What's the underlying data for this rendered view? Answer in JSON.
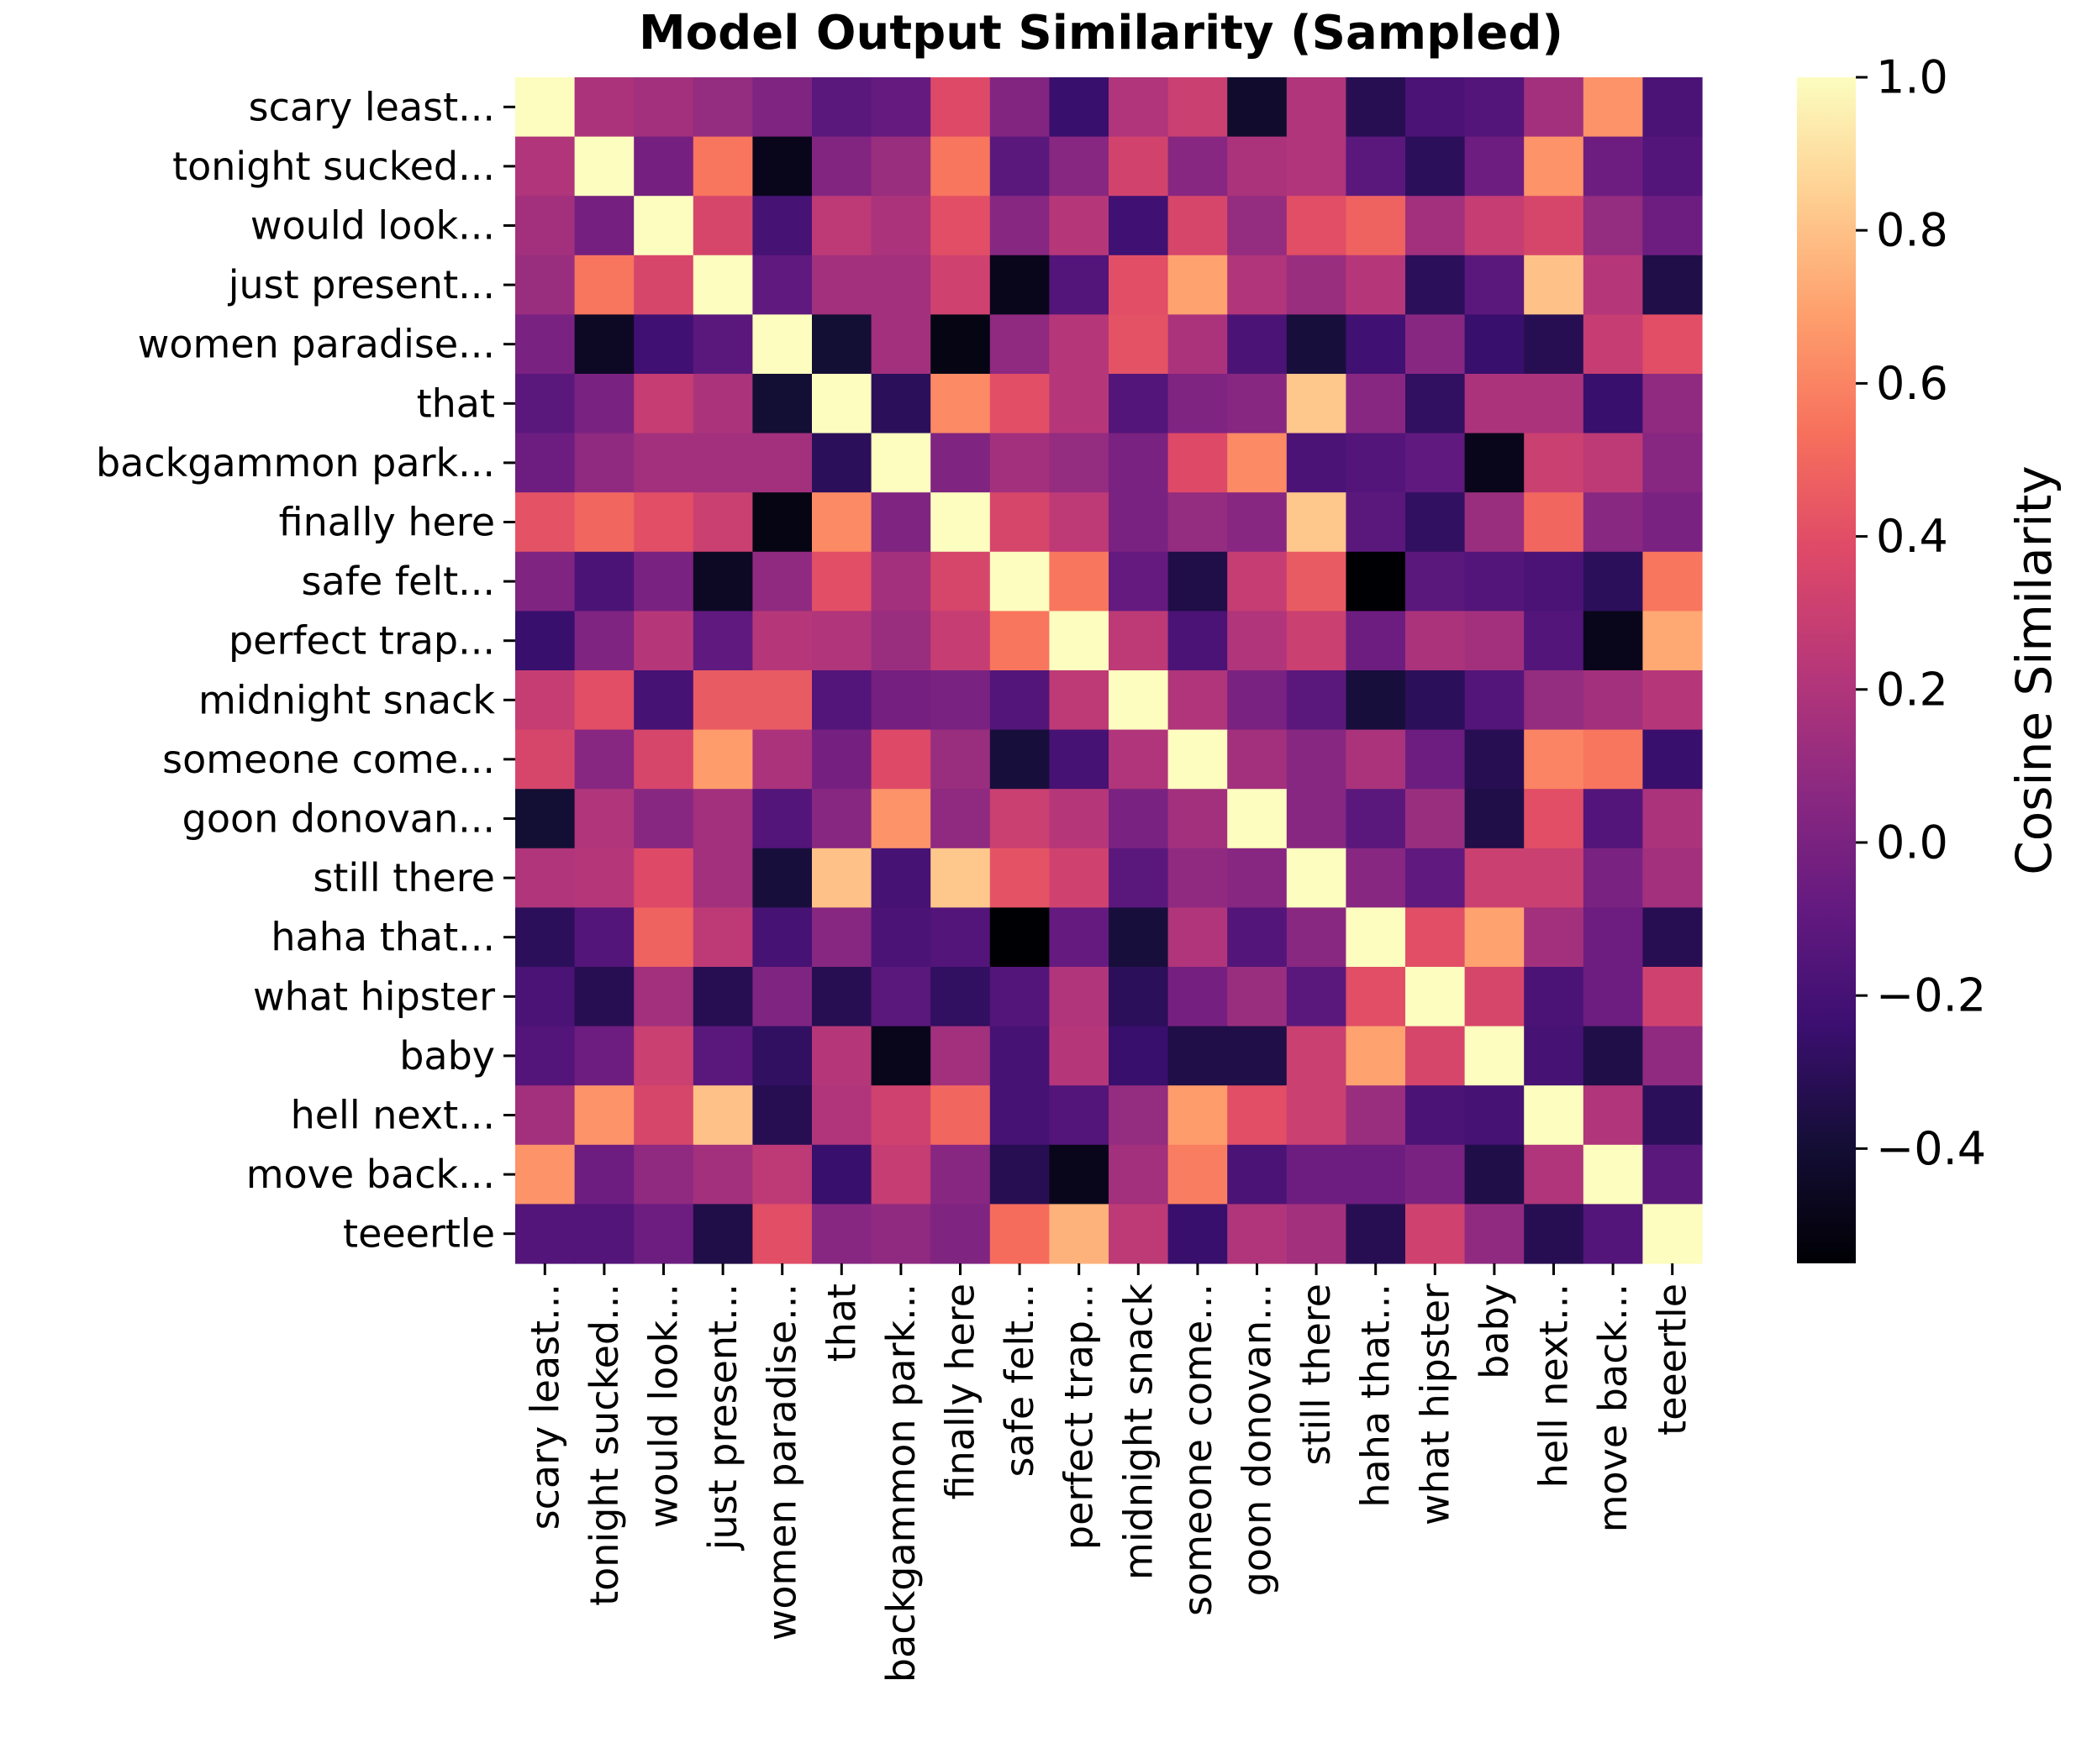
{
  "chart_data": {
    "type": "heatmap",
    "title": "Model Output Similarity (Sampled)",
    "colormap": "magma",
    "labels": [
      "scary least...",
      "tonight sucked...",
      "would look...",
      "just present...",
      "women paradise...",
      "that",
      "backgammon park...",
      "finally here",
      "safe felt...",
      "perfect trap...",
      "midnight snack",
      "someone come...",
      "goon donovan...",
      "still there",
      "haha that...",
      "what hipster",
      "baby",
      "hell next...",
      "move back...",
      "teeertle"
    ],
    "matrix": [
      [
        1.0,
        0.18,
        0.15,
        0.1,
        0.02,
        -0.12,
        -0.08,
        0.38,
        0.03,
        -0.25,
        0.2,
        0.3,
        -0.42,
        0.2,
        -0.32,
        -0.18,
        -0.15,
        0.15,
        0.65,
        -0.18
      ],
      [
        0.2,
        1.0,
        -0.02,
        0.55,
        -0.48,
        0.03,
        0.12,
        0.55,
        -0.12,
        0.05,
        0.33,
        0.05,
        0.18,
        0.2,
        -0.12,
        -0.3,
        -0.05,
        0.65,
        -0.05,
        -0.15
      ],
      [
        0.15,
        -0.02,
        1.0,
        0.35,
        -0.2,
        0.25,
        0.18,
        0.4,
        0.05,
        0.22,
        -0.22,
        0.35,
        0.1,
        0.4,
        0.48,
        0.15,
        0.28,
        0.35,
        0.1,
        -0.05
      ],
      [
        0.12,
        0.55,
        0.35,
        1.0,
        -0.1,
        0.15,
        0.15,
        0.32,
        -0.48,
        -0.15,
        0.4,
        0.7,
        0.2,
        0.12,
        0.22,
        -0.3,
        -0.12,
        0.8,
        0.22,
        -0.35
      ],
      [
        0.0,
        -0.45,
        -0.22,
        -0.12,
        1.0,
        -0.4,
        0.15,
        -0.5,
        0.08,
        0.22,
        0.42,
        0.18,
        -0.18,
        -0.38,
        -0.22,
        0.05,
        -0.25,
        -0.32,
        0.28,
        0.4
      ],
      [
        -0.12,
        0.0,
        0.28,
        0.18,
        -0.4,
        1.0,
        -0.3,
        0.62,
        0.4,
        0.22,
        -0.15,
        0.02,
        0.05,
        0.82,
        0.05,
        -0.28,
        0.18,
        0.18,
        -0.25,
        0.08
      ],
      [
        -0.05,
        0.08,
        0.15,
        0.15,
        0.15,
        -0.3,
        1.0,
        0.02,
        0.15,
        0.1,
        0.0,
        0.38,
        0.62,
        -0.18,
        -0.15,
        -0.1,
        -0.48,
        0.3,
        0.25,
        0.05
      ],
      [
        0.42,
        0.5,
        0.4,
        0.3,
        -0.5,
        0.62,
        0.02,
        1.0,
        0.35,
        0.25,
        0.0,
        0.1,
        0.05,
        0.82,
        -0.12,
        -0.28,
        0.12,
        0.5,
        0.06,
        0.0
      ],
      [
        0.02,
        -0.18,
        0.0,
        -0.45,
        0.08,
        0.4,
        0.15,
        0.35,
        1.0,
        0.55,
        -0.08,
        -0.35,
        0.28,
        0.45,
        -0.55,
        -0.12,
        -0.15,
        -0.18,
        -0.3,
        0.55
      ],
      [
        -0.25,
        0.02,
        0.22,
        -0.1,
        0.22,
        0.2,
        0.12,
        0.28,
        0.55,
        1.0,
        0.25,
        -0.18,
        0.2,
        0.3,
        -0.05,
        0.18,
        0.15,
        -0.15,
        -0.48,
        0.72
      ],
      [
        0.28,
        0.4,
        -0.2,
        0.45,
        0.45,
        -0.15,
        -0.02,
        0.0,
        -0.15,
        0.25,
        1.0,
        0.2,
        0.0,
        -0.12,
        -0.38,
        -0.3,
        -0.15,
        0.1,
        0.15,
        0.22
      ],
      [
        0.35,
        0.05,
        0.35,
        0.68,
        0.18,
        -0.02,
        0.38,
        0.12,
        -0.38,
        -0.2,
        0.2,
        1.0,
        0.15,
        0.05,
        0.18,
        -0.05,
        -0.32,
        0.6,
        0.55,
        -0.25
      ],
      [
        -0.4,
        0.2,
        0.05,
        0.15,
        -0.15,
        0.05,
        0.65,
        0.08,
        0.3,
        0.22,
        0.0,
        0.15,
        1.0,
        0.05,
        -0.12,
        0.12,
        -0.35,
        0.4,
        -0.15,
        0.18
      ],
      [
        0.2,
        0.22,
        0.38,
        0.15,
        -0.38,
        0.8,
        -0.2,
        0.82,
        0.42,
        0.32,
        -0.12,
        0.08,
        0.05,
        1.0,
        0.05,
        -0.1,
        0.3,
        0.3,
        0.0,
        0.15
      ],
      [
        -0.3,
        -0.15,
        0.48,
        0.25,
        -0.2,
        0.05,
        -0.18,
        -0.15,
        -0.55,
        -0.08,
        -0.38,
        0.2,
        -0.15,
        0.06,
        1.0,
        0.4,
        0.7,
        0.15,
        -0.05,
        -0.32
      ],
      [
        -0.18,
        -0.32,
        0.15,
        -0.32,
        0.02,
        -0.32,
        -0.12,
        -0.28,
        -0.15,
        0.2,
        -0.3,
        -0.02,
        0.12,
        -0.12,
        0.4,
        1.0,
        0.35,
        -0.18,
        -0.05,
        0.32
      ],
      [
        -0.15,
        -0.05,
        0.3,
        -0.12,
        -0.28,
        0.22,
        -0.48,
        0.15,
        -0.2,
        0.22,
        -0.25,
        -0.35,
        -0.35,
        0.3,
        0.7,
        0.35,
        1.0,
        -0.2,
        -0.35,
        0.08
      ],
      [
        0.15,
        0.65,
        0.35,
        0.8,
        -0.32,
        0.2,
        0.32,
        0.5,
        -0.2,
        -0.15,
        0.1,
        0.68,
        0.4,
        0.3,
        0.12,
        -0.18,
        -0.2,
        1.0,
        0.2,
        -0.3
      ],
      [
        0.65,
        -0.05,
        0.08,
        0.15,
        0.25,
        -0.25,
        0.28,
        0.05,
        -0.32,
        -0.48,
        0.15,
        0.58,
        -0.18,
        -0.05,
        -0.05,
        0.0,
        -0.35,
        0.2,
        1.0,
        -0.12
      ],
      [
        -0.15,
        -0.15,
        -0.05,
        -0.35,
        0.4,
        0.05,
        0.08,
        0.02,
        0.52,
        0.75,
        0.25,
        -0.25,
        0.2,
        0.15,
        -0.32,
        0.32,
        0.08,
        -0.32,
        -0.15,
        1.0
      ]
    ],
    "vmin": -0.55,
    "vmax": 1.0,
    "colorbar": {
      "label": "Cosine Similarity",
      "ticks": [
        1.0,
        0.8,
        0.6,
        0.4,
        0.2,
        0.0,
        -0.2,
        -0.4
      ],
      "tick_labels": [
        "1.0",
        "0.8",
        "0.6",
        "0.4",
        "0.2",
        "0.0",
        "−0.2",
        "−0.4"
      ]
    }
  }
}
